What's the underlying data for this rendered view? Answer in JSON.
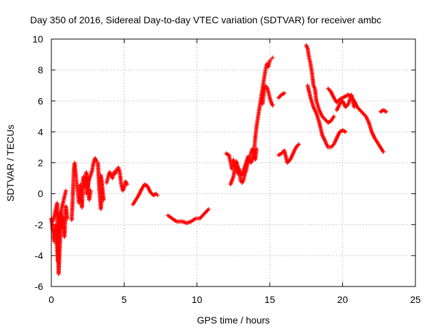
{
  "chart_data": {
    "type": "scatter",
    "title": "Day 350 of 2016, Sidereal Day-to-day VTEC variation (SDTVAR) for receiver ambc",
    "xlabel": "GPS time / hours",
    "ylabel": "SDTVAR / TECUs",
    "xlim": [
      0,
      25
    ],
    "ylim": [
      -6,
      10
    ],
    "xticks": [
      "0",
      "5",
      "10",
      "15",
      "20",
      "25"
    ],
    "yticks": [
      "-6",
      "-4",
      "-2",
      "0",
      "2",
      "4",
      "6",
      "8",
      "10"
    ],
    "grid": true,
    "marker": "plus",
    "color": "#ff0000",
    "series": [
      {
        "name": "SDTVAR",
        "segments": [
          [
            [
              0.0,
              -1.6
            ],
            [
              0.1,
              -2.4
            ],
            [
              0.2,
              -3.1
            ],
            [
              0.3,
              -2.0
            ],
            [
              0.4,
              -3.6
            ],
            [
              0.45,
              -4.4
            ],
            [
              0.5,
              -2.6
            ],
            [
              0.6,
              -1.2
            ],
            [
              0.7,
              -2.2
            ],
            [
              0.8,
              -1.5
            ],
            [
              0.9,
              -2.8
            ],
            [
              1.0,
              -0.8
            ],
            [
              1.1,
              -1.6
            ]
          ],
          [
            [
              0.1,
              -1.8
            ],
            [
              0.2,
              -1.5
            ],
            [
              0.3,
              -1.0
            ],
            [
              0.4,
              -0.6
            ],
            [
              0.5,
              -5.2
            ],
            [
              0.7,
              -1.0
            ],
            [
              0.9,
              -0.2
            ],
            [
              1.0,
              0.2
            ]
          ],
          [
            [
              1.4,
              -1.7
            ],
            [
              1.5,
              0.4
            ],
            [
              1.55,
              1.6
            ],
            [
              1.6,
              2.0
            ],
            [
              1.7,
              1.0
            ],
            [
              1.8,
              0.3
            ],
            [
              1.9,
              -0.6
            ],
            [
              2.0,
              0.6
            ],
            [
              2.1,
              -0.9
            ],
            [
              2.2,
              1.1
            ],
            [
              2.3,
              0.4
            ],
            [
              2.4,
              1.4
            ],
            [
              2.5,
              0.7
            ],
            [
              2.6,
              -0.4
            ],
            [
              2.7,
              0.2
            ]
          ],
          [
            [
              2.4,
              0.0
            ],
            [
              2.6,
              0.9
            ],
            [
              2.8,
              1.5
            ],
            [
              2.9,
              2.0
            ],
            [
              3.0,
              2.3
            ],
            [
              3.1,
              2.1
            ],
            [
              3.2,
              2.0
            ],
            [
              3.3,
              0.2
            ],
            [
              3.4,
              -1.0
            ],
            [
              3.5,
              0.4
            ],
            [
              3.4,
              1.2
            ],
            [
              3.6,
              -0.4
            ]
          ],
          [
            [
              3.8,
              0.7
            ],
            [
              3.9,
              1.1
            ],
            [
              4.0,
              1.4
            ],
            [
              4.1,
              1.2
            ],
            [
              4.2,
              1.0
            ],
            [
              4.3,
              1.4
            ],
            [
              4.4,
              1.3
            ],
            [
              4.5,
              1.6
            ],
            [
              4.6,
              1.7
            ],
            [
              4.7,
              1.4
            ],
            [
              4.8,
              0.6
            ],
            [
              4.9,
              0.2
            ],
            [
              5.0,
              0.4
            ],
            [
              5.1,
              0.8
            ],
            [
              5.2,
              0.6
            ]
          ],
          [
            [
              5.6,
              -0.7
            ],
            [
              5.8,
              -0.4
            ],
            [
              6.0,
              -0.1
            ],
            [
              6.2,
              0.3
            ],
            [
              6.4,
              0.6
            ],
            [
              6.6,
              0.5
            ],
            [
              6.8,
              0.1
            ],
            [
              7.0,
              -0.1
            ],
            [
              7.2,
              0.0
            ],
            [
              7.3,
              -0.1
            ]
          ],
          [
            [
              8.0,
              -1.4
            ],
            [
              8.3,
              -1.6
            ],
            [
              8.6,
              -1.8
            ],
            [
              9.0,
              -1.8
            ],
            [
              9.3,
              -1.9
            ],
            [
              9.6,
              -1.8
            ],
            [
              9.9,
              -1.6
            ],
            [
              10.2,
              -1.6
            ],
            [
              10.5,
              -1.3
            ],
            [
              10.8,
              -1.0
            ]
          ],
          [
            [
              12.0,
              2.6
            ],
            [
              12.2,
              2.5
            ],
            [
              12.4,
              1.6
            ],
            [
              12.5,
              2.2
            ],
            [
              12.6,
              1.8
            ],
            [
              12.7,
              1.7
            ],
            [
              12.8,
              1.3
            ],
            [
              12.9,
              1.6
            ],
            [
              13.0,
              0.8
            ],
            [
              13.1,
              0.7
            ],
            [
              13.2,
              0.9
            ],
            [
              13.3,
              1.3
            ],
            [
              13.4,
              1.6
            ],
            [
              13.5,
              2.0
            ],
            [
              13.6,
              2.2
            ],
            [
              13.7,
              2.6
            ],
            [
              13.8,
              2.9
            ],
            [
              13.9,
              2.7
            ],
            [
              14.0,
              2.2
            ],
            [
              14.1,
              2.9
            ]
          ],
          [
            [
              12.3,
              0.6
            ],
            [
              12.5,
              1.1
            ],
            [
              12.7,
              2.1
            ],
            [
              12.9,
              1.4
            ],
            [
              13.1,
              1.2
            ],
            [
              13.3,
              1.8
            ],
            [
              13.5,
              2.4
            ],
            [
              13.7,
              2.0
            ],
            [
              13.9,
              2.4
            ],
            [
              14.0,
              3.6
            ],
            [
              14.1,
              4.4
            ],
            [
              14.2,
              5.0
            ],
            [
              14.3,
              5.6
            ],
            [
              14.4,
              6.2
            ],
            [
              14.5,
              6.8
            ],
            [
              14.6,
              7.4
            ],
            [
              14.7,
              8.0
            ],
            [
              14.8,
              8.4
            ],
            [
              14.9,
              8.2
            ],
            [
              15.0,
              8.6
            ],
            [
              15.1,
              8.7
            ],
            [
              15.2,
              8.8
            ]
          ],
          [
            [
              14.5,
              5.8
            ],
            [
              14.6,
              6.6
            ],
            [
              14.7,
              7.0
            ],
            [
              14.8,
              6.9
            ],
            [
              14.9,
              6.6
            ],
            [
              15.0,
              6.2
            ],
            [
              15.1,
              5.9
            ],
            [
              15.2,
              5.7
            ]
          ],
          [
            [
              15.6,
              6.2
            ],
            [
              15.8,
              6.4
            ],
            [
              16.0,
              6.5
            ]
          ],
          [
            [
              15.6,
              2.5
            ],
            [
              15.8,
              2.6
            ],
            [
              16.0,
              2.8
            ],
            [
              16.2,
              2.0
            ],
            [
              16.4,
              2.2
            ],
            [
              16.6,
              2.6
            ],
            [
              16.8,
              3.0
            ],
            [
              17.0,
              3.2
            ]
          ],
          [
            [
              17.5,
              9.6
            ],
            [
              17.6,
              9.4
            ],
            [
              17.7,
              8.8
            ],
            [
              17.8,
              8.4
            ],
            [
              17.9,
              7.8
            ],
            [
              18.0,
              7.0
            ],
            [
              18.1,
              6.8
            ],
            [
              18.2,
              6.0
            ],
            [
              18.4,
              5.4
            ],
            [
              18.6,
              5.0
            ],
            [
              18.8,
              4.8
            ],
            [
              19.0,
              4.6
            ],
            [
              19.2,
              4.7
            ],
            [
              19.4,
              5.0
            ]
          ],
          [
            [
              17.6,
              7.0
            ],
            [
              17.8,
              6.2
            ],
            [
              18.0,
              5.6
            ],
            [
              18.2,
              5.2
            ],
            [
              18.4,
              4.6
            ],
            [
              18.6,
              3.8
            ],
            [
              18.8,
              3.4
            ],
            [
              19.0,
              3.0
            ],
            [
              19.2,
              3.0
            ],
            [
              19.4,
              3.2
            ],
            [
              19.6,
              3.6
            ],
            [
              19.8,
              4.0
            ],
            [
              20.0,
              4.1
            ],
            [
              20.2,
              4.0
            ]
          ],
          [
            [
              19.0,
              6.8
            ],
            [
              19.2,
              6.6
            ],
            [
              19.4,
              6.2
            ],
            [
              19.6,
              5.9
            ],
            [
              19.8,
              6.1
            ],
            [
              20.0,
              6.2
            ],
            [
              20.2,
              6.3
            ],
            [
              20.4,
              6.4
            ],
            [
              20.6,
              6.3
            ],
            [
              20.8,
              6.0
            ],
            [
              21.0,
              5.6
            ],
            [
              21.2,
              5.4
            ],
            [
              21.4,
              5.2
            ],
            [
              21.6,
              5.0
            ],
            [
              21.8,
              4.6
            ],
            [
              22.0,
              4.0
            ],
            [
              22.2,
              3.6
            ],
            [
              22.4,
              3.3
            ],
            [
              22.6,
              3.0
            ],
            [
              22.8,
              2.7
            ]
          ],
          [
            [
              19.6,
              5.4
            ],
            [
              19.8,
              5.8
            ],
            [
              20.0,
              6.0
            ],
            [
              20.2,
              5.6
            ],
            [
              20.4,
              5.8
            ],
            [
              20.6,
              6.4
            ],
            [
              20.8,
              5.6
            ]
          ],
          [
            [
              22.6,
              5.3
            ],
            [
              22.8,
              5.4
            ],
            [
              23.0,
              5.3
            ]
          ]
        ]
      }
    ]
  }
}
